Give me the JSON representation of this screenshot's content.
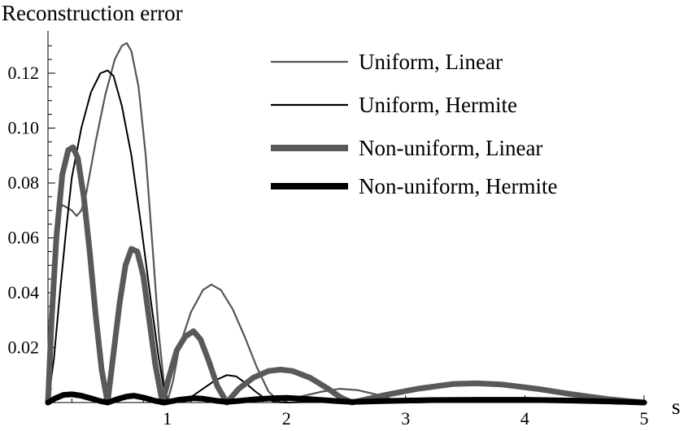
{
  "chart_data": {
    "type": "line",
    "title": "Reconstruction error",
    "xlabel": "s",
    "ylabel": "",
    "xlim": [
      0,
      5
    ],
    "ylim": [
      0,
      0.13
    ],
    "x_ticks": [
      "1",
      "2",
      "3",
      "4",
      "5"
    ],
    "y_ticks": [
      "0.02",
      "0.04",
      "0.06",
      "0.08",
      "0.10",
      "0.12"
    ],
    "legend_position": "top-right",
    "series": [
      {
        "name": "Uniform, Linear",
        "color": "#555555",
        "weight": "thin",
        "points": [
          [
            0,
            0
          ],
          [
            0.04,
            0.045
          ],
          [
            0.08,
            0.068
          ],
          [
            0.12,
            0.072
          ],
          [
            0.16,
            0.071
          ],
          [
            0.2,
            0.07
          ],
          [
            0.24,
            0.068
          ],
          [
            0.28,
            0.07
          ],
          [
            0.32,
            0.076
          ],
          [
            0.4,
            0.095
          ],
          [
            0.48,
            0.112
          ],
          [
            0.56,
            0.125
          ],
          [
            0.62,
            0.13
          ],
          [
            0.66,
            0.131
          ],
          [
            0.7,
            0.128
          ],
          [
            0.76,
            0.115
          ],
          [
            0.82,
            0.09
          ],
          [
            0.88,
            0.055
          ],
          [
            0.93,
            0.025
          ],
          [
            0.97,
            0.008
          ],
          [
            1.0,
            0
          ],
          [
            1.05,
            0.008
          ],
          [
            1.1,
            0.02
          ],
          [
            1.2,
            0.033
          ],
          [
            1.3,
            0.041
          ],
          [
            1.37,
            0.043
          ],
          [
            1.45,
            0.041
          ],
          [
            1.55,
            0.034
          ],
          [
            1.65,
            0.024
          ],
          [
            1.75,
            0.013
          ],
          [
            1.85,
            0.004
          ],
          [
            1.95,
            0
          ],
          [
            2.1,
            0.002
          ],
          [
            2.3,
            0.004
          ],
          [
            2.45,
            0.005
          ],
          [
            2.6,
            0.0045
          ],
          [
            2.75,
            0.003
          ],
          [
            2.9,
            0.001
          ],
          [
            3.0,
            0
          ],
          [
            3.5,
            0.0005
          ],
          [
            4.0,
            0.0008
          ],
          [
            4.5,
            0.0005
          ],
          [
            5.0,
            0
          ]
        ]
      },
      {
        "name": "Uniform, Hermite",
        "color": "#000000",
        "weight": "thin",
        "points": [
          [
            0,
            0
          ],
          [
            0.05,
            0.016
          ],
          [
            0.1,
            0.04
          ],
          [
            0.15,
            0.062
          ],
          [
            0.2,
            0.082
          ],
          [
            0.28,
            0.1
          ],
          [
            0.36,
            0.113
          ],
          [
            0.44,
            0.12
          ],
          [
            0.5,
            0.121
          ],
          [
            0.55,
            0.119
          ],
          [
            0.62,
            0.108
          ],
          [
            0.7,
            0.09
          ],
          [
            0.78,
            0.065
          ],
          [
            0.86,
            0.038
          ],
          [
            0.93,
            0.016
          ],
          [
            0.98,
            0.003
          ],
          [
            1.0,
            0
          ],
          [
            1.1,
            0.001
          ],
          [
            1.2,
            0.002
          ],
          [
            1.3,
            0.005
          ],
          [
            1.4,
            0.008
          ],
          [
            1.5,
            0.01
          ],
          [
            1.58,
            0.0095
          ],
          [
            1.66,
            0.007
          ],
          [
            1.74,
            0.004
          ],
          [
            1.82,
            0.0015
          ],
          [
            1.9,
            0.0003
          ],
          [
            2.0,
            0
          ],
          [
            2.5,
            0.0005
          ],
          [
            3.0,
            0
          ],
          [
            3.5,
            0.0003
          ],
          [
            4.0,
            0.0005
          ],
          [
            4.5,
            0.0003
          ],
          [
            5.0,
            0
          ]
        ]
      },
      {
        "name": "Non-uniform, Linear",
        "color": "#595959",
        "weight": "thick",
        "points": [
          [
            0,
            0
          ],
          [
            0.03,
            0.03
          ],
          [
            0.07,
            0.06
          ],
          [
            0.12,
            0.083
          ],
          [
            0.17,
            0.092
          ],
          [
            0.21,
            0.093
          ],
          [
            0.25,
            0.089
          ],
          [
            0.3,
            0.075
          ],
          [
            0.35,
            0.055
          ],
          [
            0.4,
            0.032
          ],
          [
            0.45,
            0.012
          ],
          [
            0.5,
            0
          ],
          [
            0.55,
            0.018
          ],
          [
            0.6,
            0.036
          ],
          [
            0.65,
            0.05
          ],
          [
            0.7,
            0.056
          ],
          [
            0.75,
            0.055
          ],
          [
            0.8,
            0.046
          ],
          [
            0.85,
            0.03
          ],
          [
            0.9,
            0.014
          ],
          [
            0.96,
            0
          ],
          [
            1.02,
            0.01
          ],
          [
            1.08,
            0.019
          ],
          [
            1.15,
            0.024
          ],
          [
            1.22,
            0.026
          ],
          [
            1.28,
            0.023
          ],
          [
            1.35,
            0.015
          ],
          [
            1.42,
            0.006
          ],
          [
            1.5,
            0
          ],
          [
            1.6,
            0.005
          ],
          [
            1.72,
            0.009
          ],
          [
            1.85,
            0.0115
          ],
          [
            1.95,
            0.012
          ],
          [
            2.05,
            0.0115
          ],
          [
            2.2,
            0.009
          ],
          [
            2.35,
            0.005
          ],
          [
            2.45,
            0.002
          ],
          [
            2.55,
            0
          ],
          [
            2.8,
            0.0025
          ],
          [
            3.1,
            0.005
          ],
          [
            3.4,
            0.0068
          ],
          [
            3.6,
            0.007
          ],
          [
            3.8,
            0.0066
          ],
          [
            4.1,
            0.005
          ],
          [
            4.4,
            0.003
          ],
          [
            4.7,
            0.0012
          ],
          [
            5.0,
            0
          ]
        ]
      },
      {
        "name": "Non-uniform, Hermite",
        "color": "#000000",
        "weight": "thick",
        "points": [
          [
            0,
            0
          ],
          [
            0.06,
            0.0015
          ],
          [
            0.13,
            0.0028
          ],
          [
            0.2,
            0.003
          ],
          [
            0.28,
            0.0025
          ],
          [
            0.36,
            0.0015
          ],
          [
            0.44,
            0.0005
          ],
          [
            0.5,
            0
          ],
          [
            0.58,
            0.0012
          ],
          [
            0.66,
            0.0022
          ],
          [
            0.72,
            0.0025
          ],
          [
            0.8,
            0.0018
          ],
          [
            0.9,
            0.0006
          ],
          [
            0.98,
            0
          ],
          [
            1.1,
            0.001
          ],
          [
            1.22,
            0.0016
          ],
          [
            1.3,
            0.0014
          ],
          [
            1.4,
            0.0007
          ],
          [
            1.5,
            0.0002
          ],
          [
            1.6,
            0.0006
          ],
          [
            1.75,
            0.0012
          ],
          [
            1.9,
            0.0016
          ],
          [
            2.0,
            0.0017
          ],
          [
            2.2,
            0.0012
          ],
          [
            2.4,
            0.0006
          ],
          [
            2.55,
            0.0002
          ],
          [
            2.8,
            0.0005
          ],
          [
            3.2,
            0.0009
          ],
          [
            3.6,
            0.001
          ],
          [
            4.0,
            0.001
          ],
          [
            4.4,
            0.0007
          ],
          [
            4.7,
            0.0004
          ],
          [
            5.0,
            0
          ]
        ]
      }
    ]
  }
}
